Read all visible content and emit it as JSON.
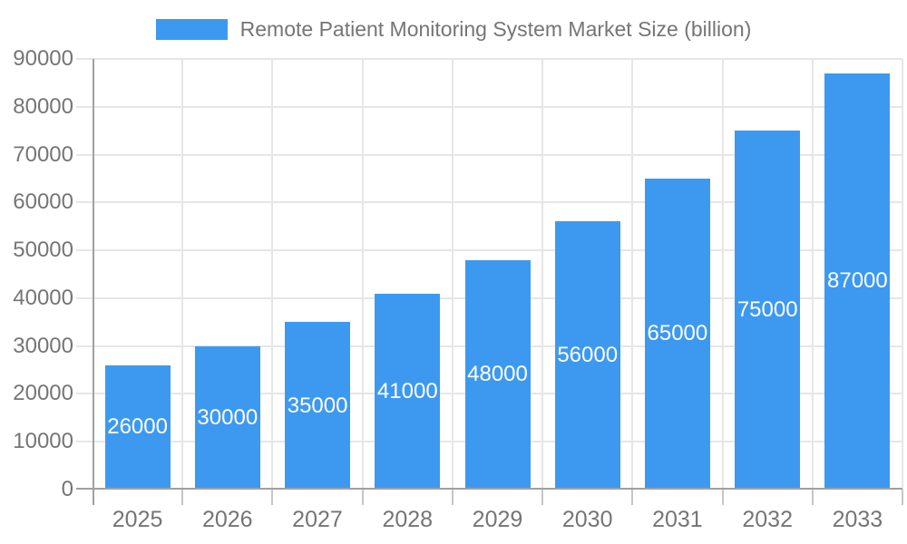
{
  "chart_data": {
    "type": "bar",
    "legend_label": "Remote Patient Monitoring System Market Size (billion)",
    "categories": [
      "2025",
      "2026",
      "2027",
      "2028",
      "2029",
      "2030",
      "2031",
      "2032",
      "2033"
    ],
    "values": [
      26000,
      30000,
      35000,
      41000,
      48000,
      56000,
      65000,
      75000,
      87000
    ],
    "ylim": [
      0,
      90000
    ],
    "ytick_step": 10000,
    "ytick_labels": [
      "0",
      "10000",
      "20000",
      "30000",
      "40000",
      "50000",
      "60000",
      "70000",
      "80000",
      "90000"
    ],
    "grid": true,
    "legend_position": "top",
    "value_labels_shown": true,
    "colors": {
      "bar": "#3d99f0",
      "value_label": "#ffffff",
      "axis_text": "#757575",
      "legend_text": "#757575",
      "gridline": "#e6e6e6",
      "axis_line": "#a0a0a0",
      "tick": "#c6c6c6",
      "background": "#ffffff"
    }
  }
}
